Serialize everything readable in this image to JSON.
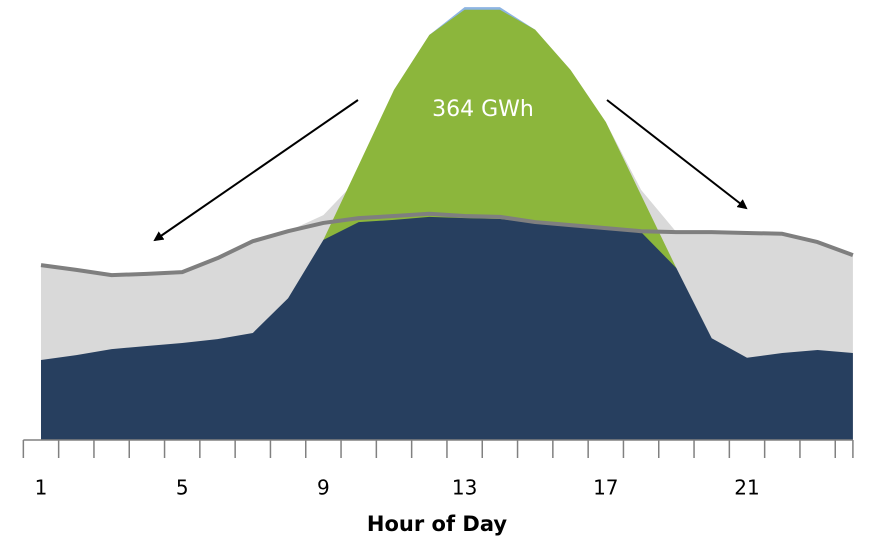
{
  "chart_data": {
    "type": "area",
    "x_label": "Hour of Day",
    "annotation": "364 GWh",
    "categories": [
      "1",
      null,
      null,
      null,
      "5",
      null,
      null,
      null,
      "9",
      null,
      null,
      null,
      "13",
      null,
      null,
      null,
      "17",
      null,
      null,
      null,
      "21",
      null,
      null,
      null
    ],
    "ylim": [
      0,
      100
    ],
    "series": [
      {
        "color": "#d9d9d9",
        "values": [
          40.2,
          39.1,
          37.9,
          38.2,
          38.6,
          41.8,
          45.7,
          48.0,
          51.7,
          60.2,
          80.5,
          93.1,
          98.9,
          98.9,
          94.3,
          85.1,
          73.1,
          57.5,
          47.8,
          47.8,
          47.6,
          47.4,
          45.5,
          42.5
        ]
      },
      {
        "color": "#8db4e2",
        "values": [
          null,
          null,
          null,
          null,
          null,
          null,
          null,
          null,
          null,
          null,
          null,
          93.1,
          99.5,
          99.5,
          94.3,
          null,
          null,
          null,
          null,
          null,
          null,
          null,
          null,
          null
        ]
      },
      {
        "color": "#8cb63c",
        "values": [
          null,
          null,
          null,
          null,
          null,
          null,
          null,
          null,
          46.0,
          63.2,
          80.5,
          93.1,
          98.9,
          98.9,
          94.3,
          85.1,
          73.1,
          56.3,
          39.5,
          null,
          null,
          null,
          null,
          null
        ]
      },
      {
        "color": "#273f5f",
        "values": [
          18.4,
          19.5,
          20.9,
          21.6,
          22.3,
          23.2,
          24.6,
          32.6,
          46.0,
          50.1,
          50.6,
          51.3,
          51.0,
          50.8,
          49.9,
          49.2,
          48.5,
          47.8,
          39.5,
          23.4,
          18.9,
          20.0,
          20.7,
          20.0
        ]
      },
      {
        "color": "#7f7f7f",
        "line": true,
        "values": [
          40.2,
          39.1,
          37.9,
          38.2,
          38.6,
          41.8,
          45.7,
          48.0,
          49.9,
          51.0,
          51.5,
          52.0,
          51.5,
          51.3,
          50.1,
          49.4,
          48.7,
          48.0,
          47.8,
          47.8,
          47.6,
          47.4,
          45.5,
          42.5
        ]
      }
    ]
  }
}
